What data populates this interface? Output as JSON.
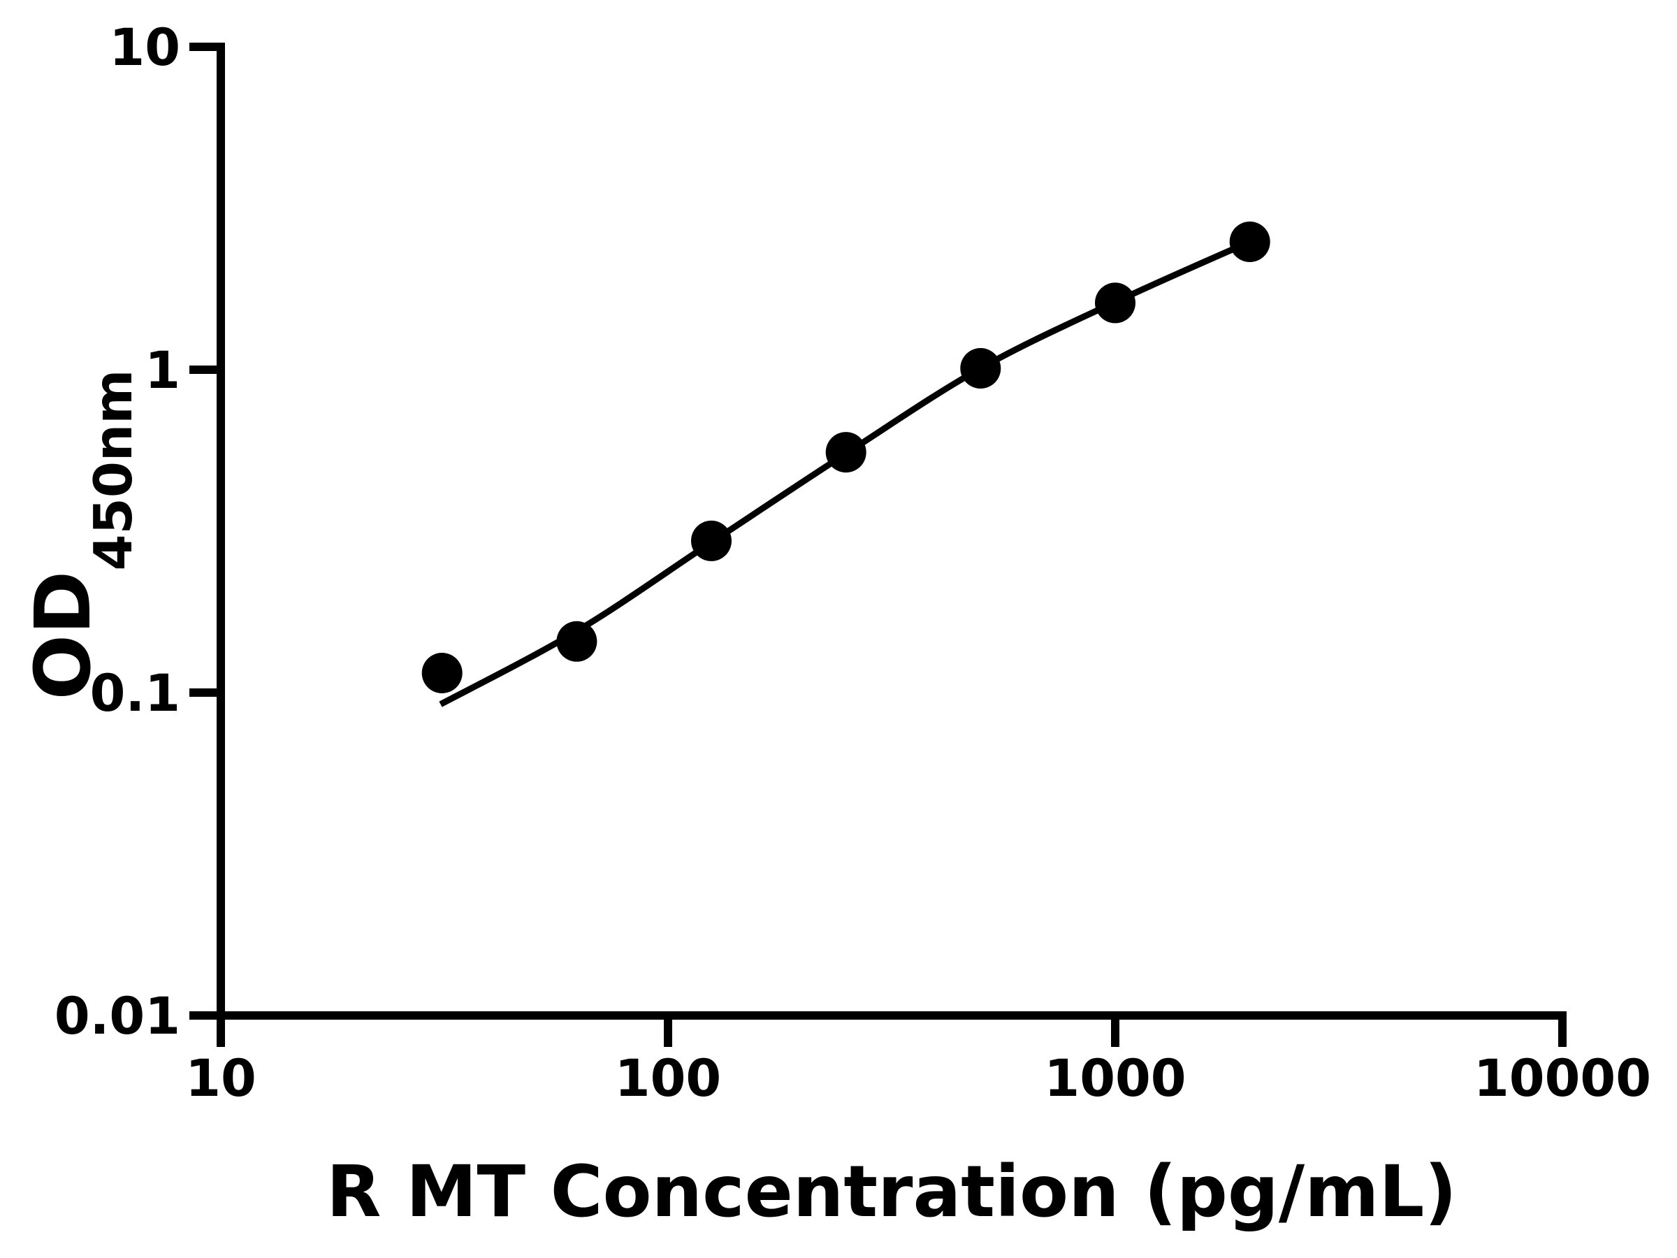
{
  "figure": {
    "background": "#ffffff",
    "ink": "#000000"
  },
  "chart_data": {
    "type": "scatter",
    "title": "",
    "xlabel": "R MT Concentration (pg/mL)",
    "ylabel": "OD450nm",
    "ylabel_main": "OD",
    "ylabel_sub": "450nm",
    "x_scale": "log",
    "y_scale": "log",
    "xlim": [
      10,
      10000
    ],
    "ylim": [
      0.01,
      10
    ],
    "x_ticks": [
      10,
      100,
      1000,
      10000
    ],
    "x_tick_labels": [
      "10",
      "100",
      "1000",
      "10000"
    ],
    "y_ticks": [
      0.01,
      0.1,
      1,
      10
    ],
    "y_tick_labels": [
      "0.01",
      "0.1",
      "1",
      "10"
    ],
    "grid": false,
    "legend": null,
    "marker_color": "#000000",
    "line_color": "#000000",
    "series": [
      {
        "name": "standard-points",
        "type": "scatter",
        "marker": "circle",
        "x": [
          31.25,
          62.5,
          125,
          250,
          500,
          1000,
          2000
        ],
        "y": [
          0.115,
          0.144,
          0.295,
          0.555,
          1.01,
          1.61,
          2.49
        ]
      },
      {
        "name": "fit-curve",
        "type": "line",
        "x": [
          31,
          62.5,
          125,
          250,
          500,
          1000,
          2000
        ],
        "y": [
          0.092,
          0.155,
          0.292,
          0.55,
          1.01,
          1.62,
          2.49
        ]
      }
    ]
  }
}
